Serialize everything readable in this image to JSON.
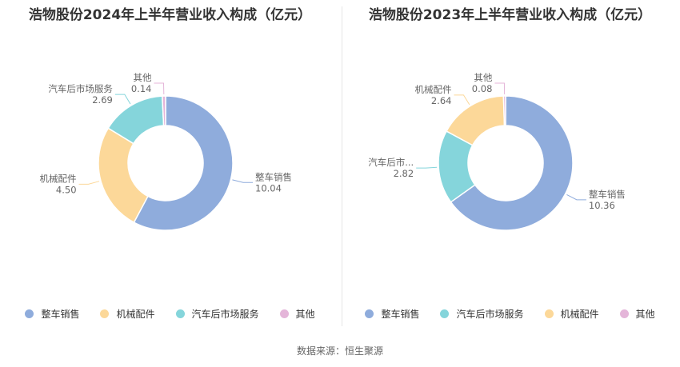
{
  "source_note": "数据来源：恒生聚源",
  "chart_data": [
    {
      "type": "pie",
      "title": "浩物股份2024年上半年营业收入构成（亿元）",
      "slices": [
        {
          "name": "整车销售",
          "value": 10.04,
          "value_label": "10.04",
          "color": "#8facdc"
        },
        {
          "name": "机械配件",
          "value": 4.5,
          "value_label": "4.50",
          "color": "#fcd899"
        },
        {
          "name": "汽车后市场服务",
          "value": 2.69,
          "value_label": "2.69",
          "color": "#85d5db"
        },
        {
          "name": "其他",
          "value": 0.14,
          "value_label": "0.14",
          "color": "#e4b5d9"
        }
      ],
      "legend": [
        "整车销售",
        "机械配件",
        "汽车后市场服务",
        "其他"
      ],
      "legend_position": "bottom"
    },
    {
      "type": "pie",
      "title": "浩物股份2023年上半年营业收入构成（亿元）",
      "slices": [
        {
          "name": "整车销售",
          "value": 10.36,
          "value_label": "10.36",
          "color": "#8facdc"
        },
        {
          "name": "汽车后市场服务",
          "display_name": "汽车后市...",
          "value": 2.82,
          "value_label": "2.82",
          "color": "#85d5db"
        },
        {
          "name": "机械配件",
          "value": 2.64,
          "value_label": "2.64",
          "color": "#fcd899"
        },
        {
          "name": "其他",
          "value": 0.08,
          "value_label": "0.08",
          "color": "#e4b5d9"
        }
      ],
      "legend": [
        "整车销售",
        "汽车后市场服务",
        "机械配件",
        "其他"
      ],
      "legend_position": "bottom"
    }
  ]
}
